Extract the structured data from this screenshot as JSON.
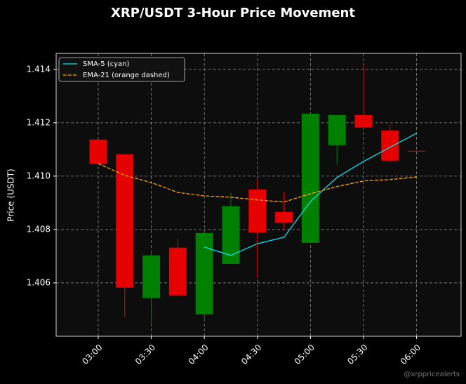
{
  "chart_data": {
    "type": "candlestick",
    "title": "XRP/USDT 3-Hour Price Movement",
    "ylabel": "Price (USDT)",
    "watermark": "@xrppricealerts",
    "categories": [
      "03:00",
      null,
      "03:30",
      null,
      "04:00",
      null,
      "04:30",
      null,
      "05:00",
      null,
      "05:30",
      null,
      "06:00"
    ],
    "open": [
      1.41137,
      1.41082,
      1.40543,
      1.40732,
      1.40482,
      1.40671,
      1.4095,
      1.40866,
      1.4075,
      1.41116,
      1.41229,
      1.41171,
      1.41095
    ],
    "high": [
      1.41137,
      1.41082,
      1.40718,
      1.40766,
      1.40787,
      1.40939,
      1.40989,
      1.40942,
      1.41234,
      1.41229,
      1.41416,
      1.41192,
      1.41095
    ],
    "low": [
      1.41045,
      1.40471,
      1.4045,
      1.40553,
      1.40455,
      1.40671,
      1.40621,
      1.40797,
      1.4075,
      1.41042,
      1.41182,
      1.4105,
      1.41092
    ],
    "close": [
      1.41045,
      1.40582,
      1.40703,
      1.40553,
      1.40787,
      1.40887,
      1.40789,
      1.40826,
      1.41234,
      1.41229,
      1.41182,
      1.41058,
      1.41092
    ],
    "up_color": "#008000",
    "down_color": "#e60000",
    "lines": [
      {
        "name": "SMA-5 (cyan)",
        "color": "#00e5ee",
        "dashed": false,
        "values": [
          null,
          null,
          null,
          null,
          1.40734,
          1.40703,
          1.40747,
          1.40771,
          1.40905,
          1.40995,
          1.41055,
          1.41108,
          1.41161
        ]
      },
      {
        "name": "EMA-21 (orange dashed)",
        "color": "#ffa500",
        "dashed": true,
        "values": [
          1.41047,
          1.41003,
          1.40976,
          1.40939,
          1.40926,
          1.40921,
          1.40911,
          1.40903,
          1.40934,
          1.40961,
          1.40982,
          1.40987,
          1.40997
        ]
      }
    ],
    "ylim": [
      1.404,
      1.4146
    ],
    "yticks": [
      {
        "value": 1.406,
        "label": "1.406"
      },
      {
        "value": 1.408,
        "label": "1.408"
      },
      {
        "value": 1.41,
        "label": "1.410"
      },
      {
        "value": 1.412,
        "label": "1.412"
      },
      {
        "value": 1.414,
        "label": "1.414"
      }
    ],
    "grid": true,
    "legend": "upper left"
  }
}
